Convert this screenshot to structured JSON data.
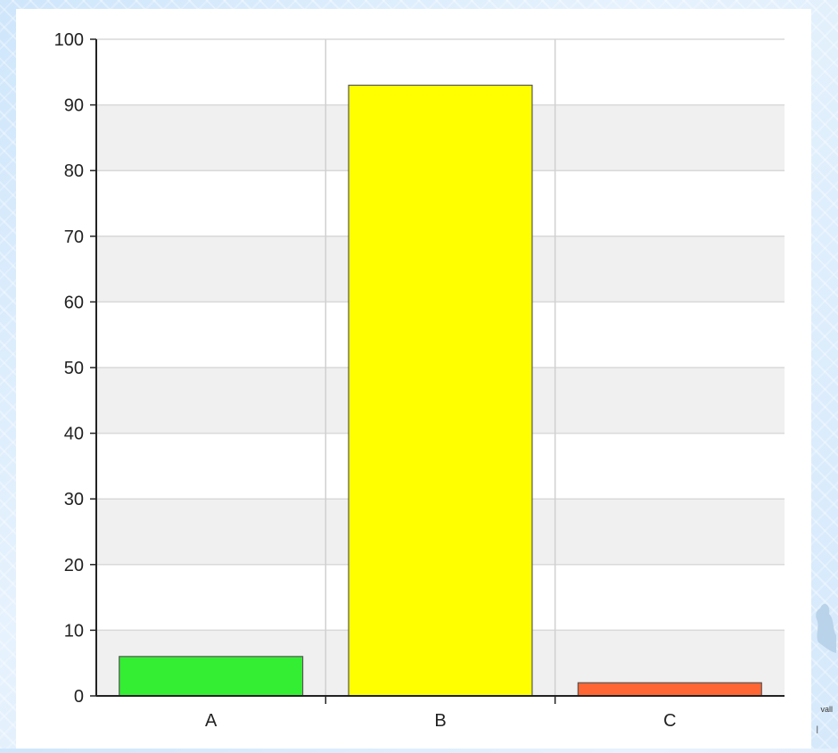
{
  "chart_data": {
    "type": "bar",
    "categories": [
      "A",
      "B",
      "C"
    ],
    "values": [
      6,
      93,
      2
    ],
    "colors": [
      "#33ee33",
      "#ffff00",
      "#ff6633"
    ],
    "ylim": [
      0,
      100
    ],
    "yticks": [
      0,
      10,
      20,
      30,
      40,
      50,
      60,
      70,
      80,
      90,
      100
    ],
    "grid": "horizontal, alternating white and light-gray bands",
    "title": "",
    "xlabel": "",
    "ylabel": ""
  },
  "corner_fragment": {
    "text": "vall",
    "mark": "|"
  }
}
